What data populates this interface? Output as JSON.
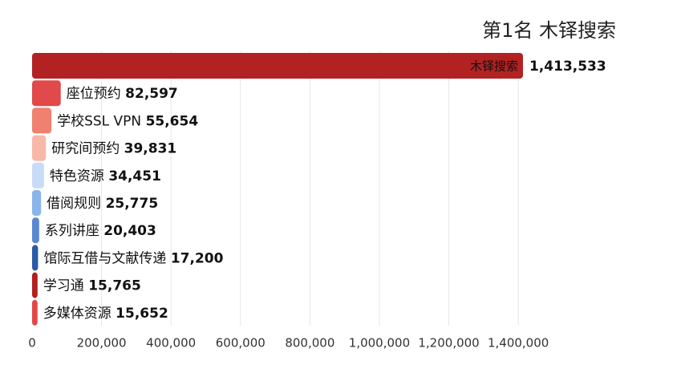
{
  "chart_data": {
    "type": "bar",
    "orientation": "horizontal",
    "title": "第1名 木铎搜索",
    "xlabel": "",
    "ylabel": "",
    "xlim": [
      0,
      1420000
    ],
    "grid": true,
    "categories": [
      "木铎搜索",
      "座位预约",
      "学校SSL VPN",
      "研究间预约",
      "特色资源",
      "借阅规则",
      "系列讲座",
      "馆际互借与文献传递",
      "学习通",
      "多媒体资源"
    ],
    "values": [
      1413533,
      82597,
      55654,
      39831,
      34451,
      25775,
      20403,
      17200,
      15765,
      15652
    ],
    "value_labels": [
      "1,413,533",
      "82,597",
      "55,654",
      "39,831",
      "34,451",
      "25,775",
      "20,403",
      "17,200",
      "15,765",
      "15,652"
    ],
    "colors": [
      "#b22222",
      "#e04a4a",
      "#f08070",
      "#f8b8a8",
      "#c8dcf8",
      "#8ab4ec",
      "#5a88d0",
      "#2a5aa8",
      "#b22020",
      "#e04848"
    ],
    "x_ticks": [
      0,
      200000,
      400000,
      600000,
      800000,
      1000000,
      1200000,
      1400000
    ],
    "x_tick_labels": [
      "0",
      "200,000",
      "400,000",
      "600,000",
      "800,000",
      "1,000,000",
      "1,200,000",
      "1,400,000"
    ]
  }
}
